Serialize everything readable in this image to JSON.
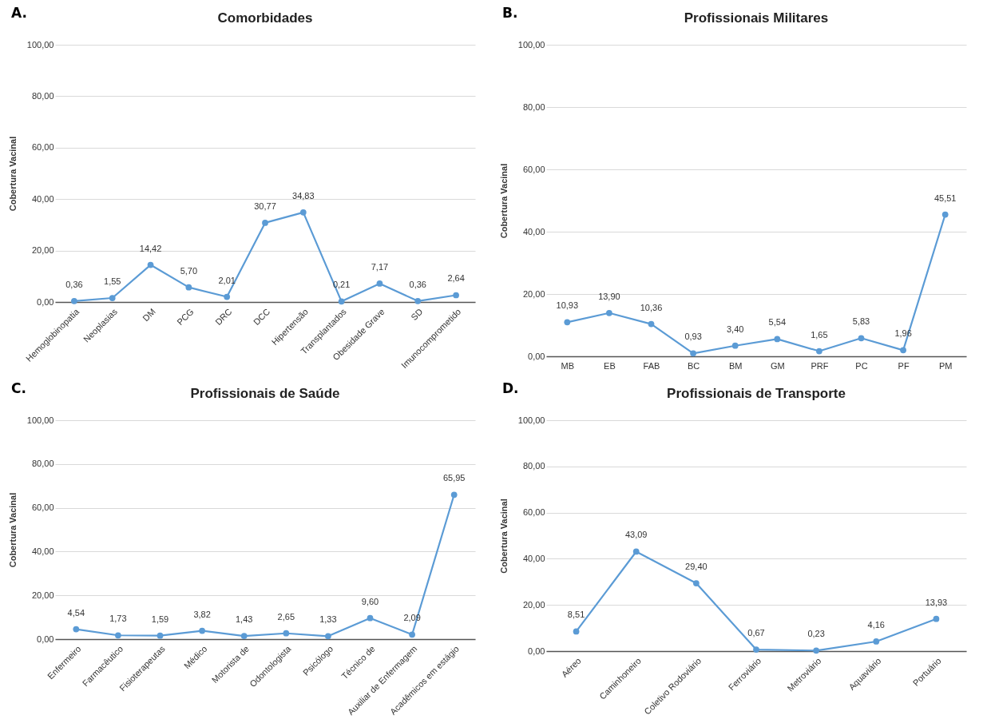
{
  "chart_data": [
    {
      "type": "line",
      "title": "Comorbidades",
      "ylabel": "Cobertura Vacinal",
      "annotations": [
        "A."
      ],
      "categories": [
        "Hemoglobinopatia",
        "Neoplasias",
        "DM",
        "PCG",
        "DRC",
        "DCC",
        "Hipertensão",
        "Transplantados",
        "Obesidade Grave",
        "SD",
        "Imunocomprometido"
      ],
      "series": [
        {
          "color": "#5b9bd5",
          "values": [
            0.36,
            1.55,
            14.42,
            5.7,
            2.01,
            30.77,
            34.83,
            0.21,
            7.17,
            0.36,
            2.64
          ],
          "value_labels": [
            "0,36",
            "1,55",
            "14,42",
            "5,70",
            "2,01",
            "30,77",
            "34,83",
            "0,21",
            "7,17",
            "0,36",
            "2,64"
          ]
        }
      ],
      "ylim": [
        0,
        100
      ],
      "yticks": [
        {
          "value": 0,
          "label": "0,00"
        },
        {
          "value": 20,
          "label": "20,00"
        },
        {
          "value": 40,
          "label": "40,00"
        },
        {
          "value": 60,
          "label": "60,00"
        },
        {
          "value": 80,
          "label": "80,00"
        },
        {
          "value": 100,
          "label": "100,00"
        }
      ],
      "grid": "y",
      "marker": "circle"
    },
    {
      "type": "line",
      "title": "Profissionais Militares",
      "ylabel": "Cobertura Vacinal",
      "annotations": [
        "B."
      ],
      "categories": [
        "MB",
        "EB",
        "FAB",
        "BC",
        "BM",
        "GM",
        "PRF",
        "PC",
        "PF",
        "PM"
      ],
      "series": [
        {
          "color": "#5b9bd5",
          "values": [
            10.93,
            13.9,
            10.36,
            0.93,
            3.4,
            5.54,
            1.65,
            5.83,
            1.96,
            45.51
          ],
          "value_labels": [
            "10,93",
            "13,90",
            "10,36",
            "0,93",
            "3,40",
            "5,54",
            "1,65",
            "5,83",
            "1,96",
            "45,51"
          ]
        }
      ],
      "ylim": [
        0,
        100
      ],
      "yticks": [
        {
          "value": 0,
          "label": "0,00"
        },
        {
          "value": 20,
          "label": "20,00"
        },
        {
          "value": 40,
          "label": "40,00"
        },
        {
          "value": 60,
          "label": "60,00"
        },
        {
          "value": 80,
          "label": "80,00"
        },
        {
          "value": 100,
          "label": "100,00"
        }
      ],
      "grid": "y",
      "marker": "circle"
    },
    {
      "type": "line",
      "title": "Profissionais de Saúde",
      "ylabel": "Cobertura Vacinal",
      "annotations": [
        "C."
      ],
      "categories": [
        "Enfermeiro",
        "Farmacêutico",
        "Fisioterapeutas",
        "Médico",
        "Motorista de",
        "Odontologista",
        "Psicólogo",
        "Técnico de",
        "Auxiliar de Enfermagem",
        "Acadêmicos em estágio"
      ],
      "series": [
        {
          "color": "#5b9bd5",
          "values": [
            4.54,
            1.73,
            1.59,
            3.82,
            1.43,
            2.65,
            1.33,
            9.6,
            2.09,
            65.95
          ],
          "value_labels": [
            "4,54",
            "1,73",
            "1,59",
            "3,82",
            "1,43",
            "2,65",
            "1,33",
            "9,60",
            "2,09",
            "65,95"
          ]
        }
      ],
      "ylim": [
        0,
        100
      ],
      "yticks": [
        {
          "value": 0,
          "label": "0,00"
        },
        {
          "value": 20,
          "label": "20,00"
        },
        {
          "value": 40,
          "label": "40,00"
        },
        {
          "value": 60,
          "label": "60,00"
        },
        {
          "value": 80,
          "label": "80,00"
        },
        {
          "value": 100,
          "label": "100,00"
        }
      ],
      "grid": "y",
      "marker": "circle"
    },
    {
      "type": "line",
      "title": "Profissionais de Transporte",
      "ylabel": "Cobertura Vacinal",
      "annotations": [
        "D."
      ],
      "categories": [
        "Aéreo",
        "Caminhoneiro",
        "Coletivo Rodoviário",
        "Ferroviário",
        "Metroviário",
        "Aquaviário",
        "Portuário"
      ],
      "series": [
        {
          "color": "#5b9bd5",
          "values": [
            8.51,
            43.09,
            29.4,
            0.67,
            0.23,
            4.16,
            13.93
          ],
          "value_labels": [
            "8,51",
            "43,09",
            "29,40",
            "0,67",
            "0,23",
            "4,16",
            "13,93"
          ]
        }
      ],
      "ylim": [
        0,
        100
      ],
      "yticks": [
        {
          "value": 0,
          "label": "0,00"
        },
        {
          "value": 20,
          "label": "20,00"
        },
        {
          "value": 40,
          "label": "40,00"
        },
        {
          "value": 60,
          "label": "60,00"
        },
        {
          "value": 80,
          "label": "80,00"
        },
        {
          "value": 100,
          "label": "100,00"
        }
      ],
      "grid": "y",
      "marker": "circle"
    }
  ]
}
